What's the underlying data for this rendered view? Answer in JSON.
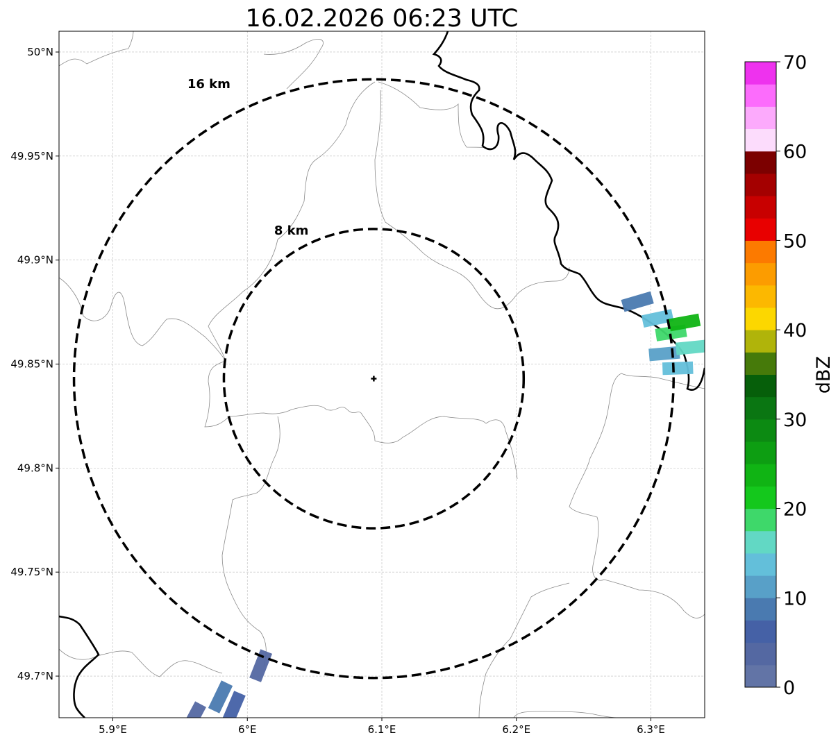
{
  "title": "16.02.2026 06:23 UTC",
  "map": {
    "lon_range": [
      5.86,
      6.34
    ],
    "lat_range": [
      49.68,
      50.01
    ],
    "lon_ticks": [
      {
        "value": 5.9,
        "label": "5.9°E"
      },
      {
        "value": 6.0,
        "label": "6°E"
      },
      {
        "value": 6.1,
        "label": "6.1°E"
      },
      {
        "value": 6.2,
        "label": "6.2°E"
      },
      {
        "value": 6.3,
        "label": "6.3°E"
      }
    ],
    "lat_ticks": [
      {
        "value": 49.7,
        "label": "49.7°N"
      },
      {
        "value": 49.75,
        "label": "49.75°N"
      },
      {
        "value": 49.8,
        "label": "49.8°N"
      },
      {
        "value": 49.85,
        "label": "49.85°N"
      },
      {
        "value": 49.9,
        "label": "49.9°N"
      },
      {
        "value": 49.95,
        "label": "49.95°N"
      },
      {
        "value": 50.0,
        "label": "50°N"
      }
    ],
    "center": {
      "lon": 6.094,
      "lat": 49.843
    },
    "range_rings": [
      {
        "label": "8 km",
        "radius_km": 8
      },
      {
        "label": "16 km",
        "radius_km": 16
      }
    ]
  },
  "colorbar": {
    "label": "dBZ",
    "ticks": [
      "0",
      "10",
      "20",
      "30",
      "40",
      "50",
      "60",
      "70"
    ],
    "min": 0,
    "max": 70,
    "colors": [
      "#6274a6",
      "#5468a2",
      "#4561a6",
      "#4a7ab0",
      "#58a0c8",
      "#63bfda",
      "#62d8c4",
      "#3ed86a",
      "#14c81c",
      "#10b414",
      "#0d9e12",
      "#0c8a12",
      "#0a7612",
      "#065f0a",
      "#467a0a",
      "#b0b40a",
      "#fcd700",
      "#fcb800",
      "#fc9c00",
      "#fc7a00",
      "#e80000",
      "#c80000",
      "#a40000",
      "#7c0000",
      "#fcdcfc",
      "#fcaafc",
      "#fc6cfc",
      "#ee32ee"
    ]
  },
  "echoes": [
    {
      "lon": 6.29,
      "lat": 49.88,
      "dbz": 8
    },
    {
      "lon": 6.305,
      "lat": 49.872,
      "dbz": 14
    },
    {
      "lon": 6.315,
      "lat": 49.865,
      "dbz": 19
    },
    {
      "lon": 6.325,
      "lat": 49.87,
      "dbz": 23
    },
    {
      "lon": 6.31,
      "lat": 49.855,
      "dbz": 11
    },
    {
      "lon": 6.32,
      "lat": 49.848,
      "dbz": 13
    },
    {
      "lon": 6.33,
      "lat": 49.858,
      "dbz": 17
    },
    {
      "lon": 5.98,
      "lat": 49.69,
      "dbz": 8
    },
    {
      "lon": 5.99,
      "lat": 49.685,
      "dbz": 6
    },
    {
      "lon": 6.01,
      "lat": 49.705,
      "dbz": 3
    },
    {
      "lon": 5.96,
      "lat": 49.68,
      "dbz": 4
    }
  ]
}
